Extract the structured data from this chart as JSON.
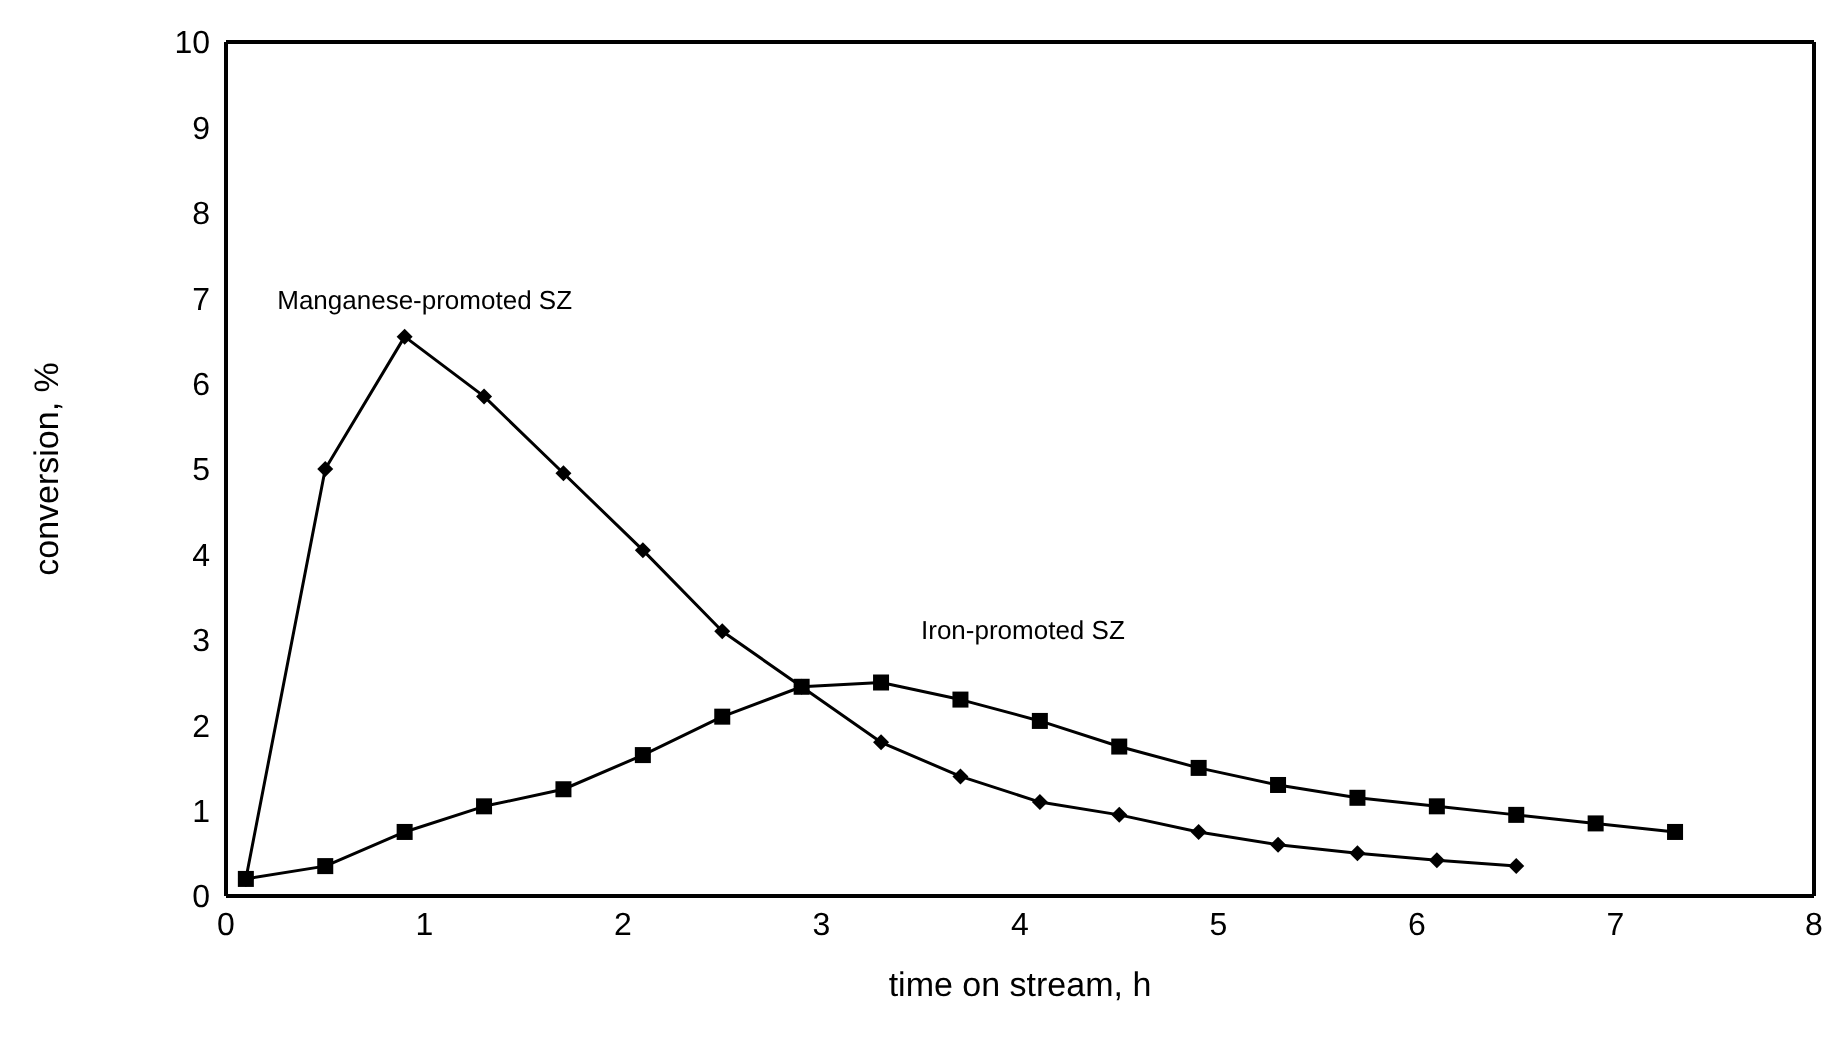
{
  "chart_data": {
    "type": "line",
    "xlabel": "time on stream, h",
    "ylabel": "conversion, %",
    "xlim": [
      0,
      8
    ],
    "xticks": [
      0,
      1,
      2,
      3,
      4,
      5,
      6,
      7,
      8
    ],
    "ylim": [
      0,
      10
    ],
    "yticks": [
      0,
      1,
      2,
      3,
      4,
      5,
      6,
      7,
      8,
      9,
      10
    ],
    "series": [
      {
        "name": "Manganese-promoted SZ",
        "color": "#000000",
        "marker": "diamond",
        "x": [
          0.1,
          0.5,
          0.9,
          1.3,
          1.7,
          2.1,
          2.5,
          2.9,
          3.3,
          3.7,
          4.1,
          4.5,
          4.9,
          5.3,
          5.7,
          6.1,
          6.5
        ],
        "values": [
          0.2,
          5.0,
          6.55,
          5.85,
          4.95,
          4.05,
          3.1,
          2.45,
          1.8,
          1.4,
          1.1,
          0.95,
          0.75,
          0.6,
          0.5,
          0.42,
          0.35
        ]
      },
      {
        "name": "Iron-promoted SZ",
        "color": "#000000",
        "marker": "square",
        "x": [
          0.1,
          0.5,
          0.9,
          1.3,
          1.7,
          2.1,
          2.5,
          2.9,
          3.3,
          3.7,
          4.1,
          4.5,
          4.9,
          5.3,
          5.7,
          6.1,
          6.5,
          6.9,
          7.3
        ],
        "values": [
          0.2,
          0.35,
          0.75,
          1.05,
          1.25,
          1.65,
          2.1,
          2.45,
          2.5,
          2.3,
          2.05,
          1.75,
          1.5,
          1.3,
          1.15,
          1.05,
          0.95,
          0.85,
          0.75
        ]
      }
    ]
  }
}
